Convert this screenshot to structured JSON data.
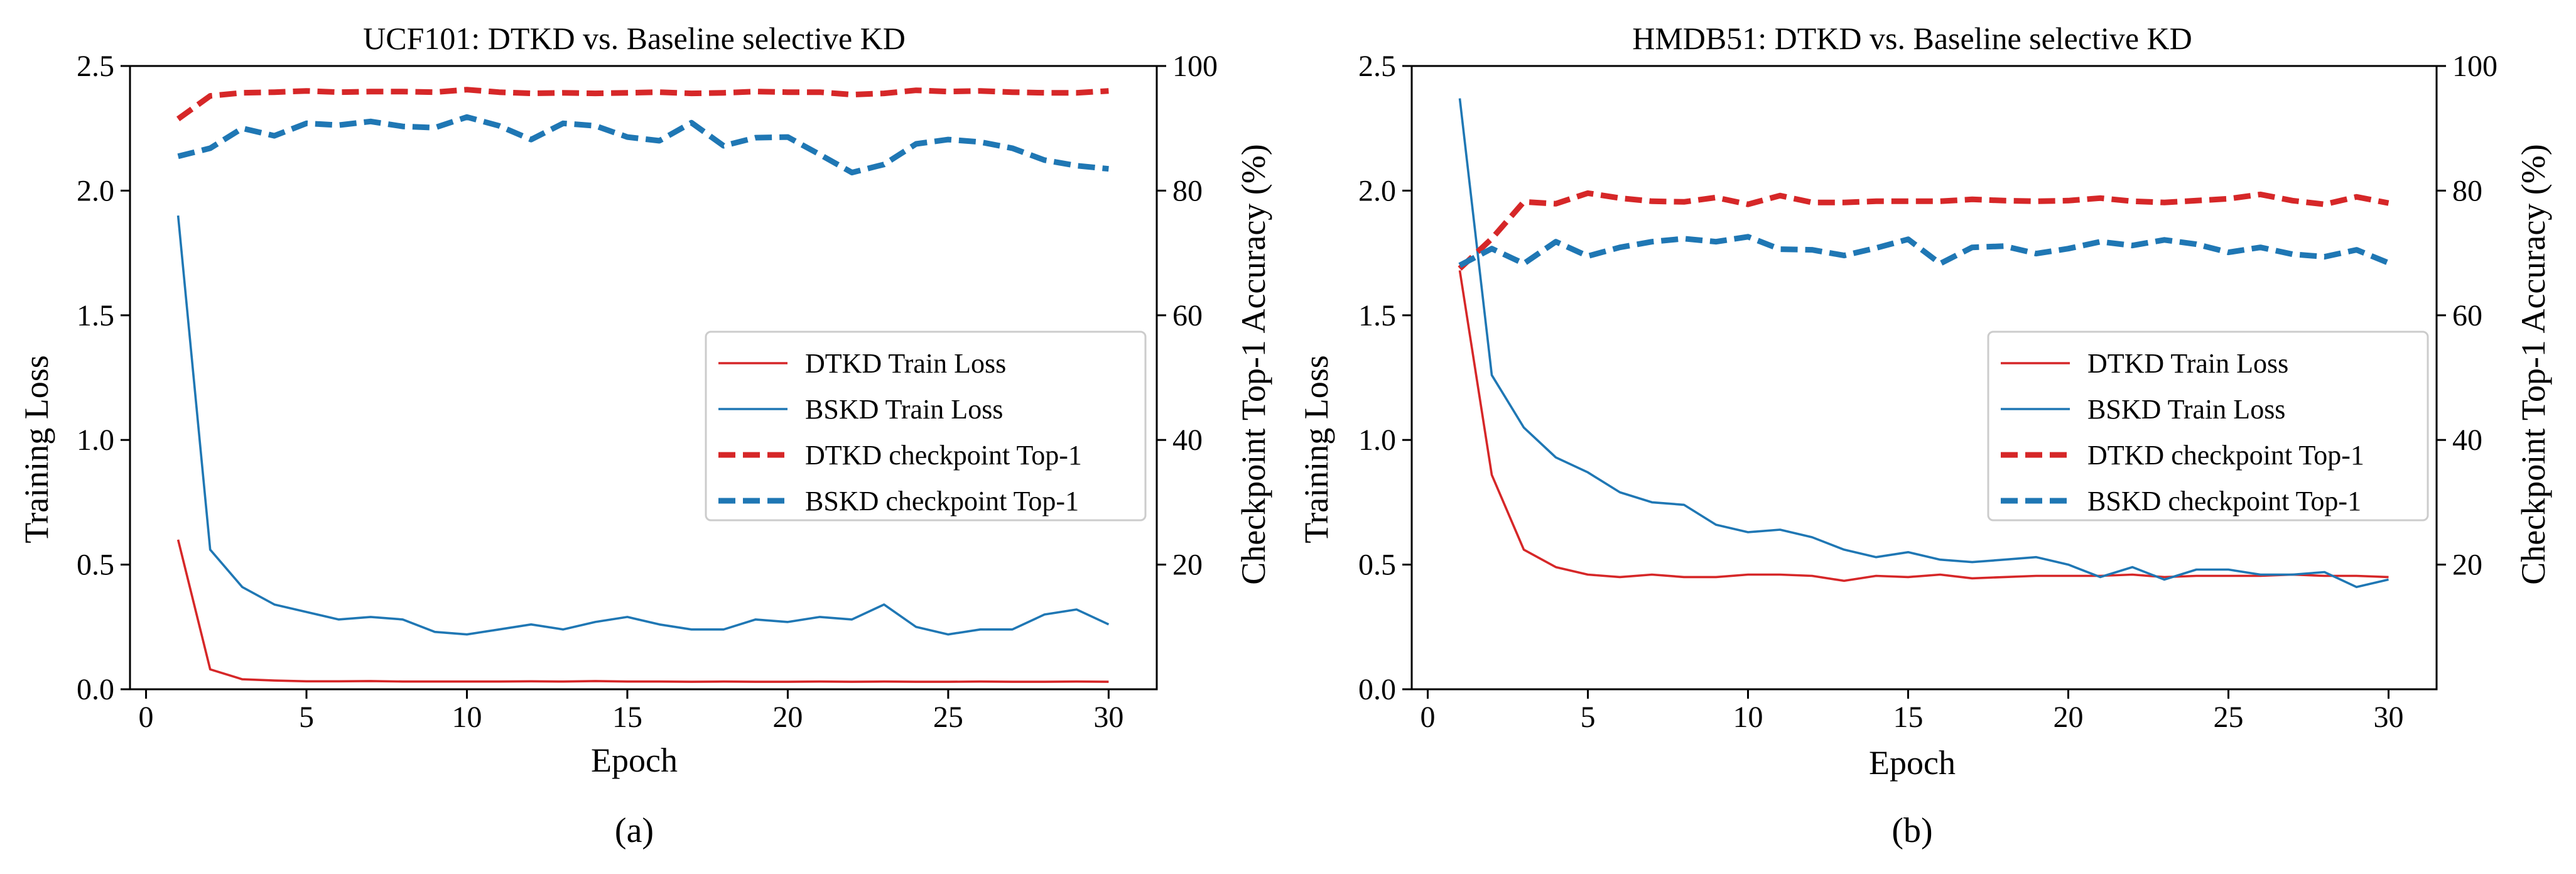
{
  "panel_labels": [
    "(a)",
    "(b)"
  ],
  "chart_data": [
    {
      "type": "line",
      "title": "UCF101: DTKD vs. Baseline selective KD",
      "xlabel": "Epoch",
      "ylabel": "Training Loss",
      "y2label": "Checkpoint Top-1 Accuracy (%)",
      "xlim": [
        -0.5,
        31.5
      ],
      "ylim": [
        0,
        2.5
      ],
      "y2lim": [
        0.0,
        100.0
      ],
      "xticks": [
        "0",
        "5",
        "10",
        "15",
        "20",
        "25",
        "30"
      ],
      "yticks": [
        "0.0",
        "0.5",
        "1.0",
        "1.5",
        "2.0",
        "2.5"
      ],
      "y2ticks": [
        "20",
        "40",
        "60",
        "80",
        "100"
      ],
      "legend_position": "center-right",
      "grid": false,
      "x": [
        1,
        2,
        3,
        4,
        5,
        6,
        7,
        8,
        9,
        10,
        11,
        12,
        13,
        14,
        15,
        16,
        17,
        18,
        19,
        20,
        21,
        22,
        23,
        24,
        25,
        26,
        27,
        28,
        29,
        30
      ],
      "series": [
        {
          "name": "DTKD Train Loss",
          "axis": "left",
          "style": "solid",
          "color": "#d62728",
          "values": [
            0.6,
            0.08,
            0.04,
            0.035,
            0.032,
            0.032,
            0.033,
            0.031,
            0.031,
            0.031,
            0.031,
            0.032,
            0.031,
            0.033,
            0.031,
            0.031,
            0.03,
            0.031,
            0.03,
            0.03,
            0.031,
            0.03,
            0.031,
            0.03,
            0.03,
            0.031,
            0.03,
            0.03,
            0.031,
            0.03
          ]
        },
        {
          "name": "BSKD Train Loss",
          "axis": "left",
          "style": "solid",
          "color": "#1f77b4",
          "values": [
            1.9,
            0.56,
            0.41,
            0.34,
            0.31,
            0.28,
            0.29,
            0.28,
            0.23,
            0.22,
            0.24,
            0.26,
            0.24,
            0.27,
            0.29,
            0.26,
            0.24,
            0.24,
            0.28,
            0.27,
            0.29,
            0.28,
            0.34,
            0.25,
            0.22,
            0.24,
            0.24,
            0.3,
            0.32,
            0.26
          ]
        },
        {
          "name": "DTKD checkpoint Top-1",
          "axis": "right",
          "style": "dashed",
          "color": "#d62728",
          "values": [
            91.5,
            95.2,
            95.7,
            95.8,
            96.0,
            95.8,
            95.9,
            95.9,
            95.8,
            96.2,
            95.8,
            95.6,
            95.7,
            95.6,
            95.7,
            95.8,
            95.6,
            95.7,
            95.9,
            95.8,
            95.8,
            95.4,
            95.6,
            96.1,
            95.9,
            96.0,
            95.8,
            95.7,
            95.7,
            96.0
          ]
        },
        {
          "name": "BSKD checkpoint Top-1",
          "axis": "right",
          "style": "dashed",
          "color": "#1f77b4",
          "values": [
            85.5,
            86.8,
            90.0,
            88.8,
            90.8,
            90.5,
            91.1,
            90.3,
            90.1,
            91.8,
            90.4,
            88.2,
            90.8,
            90.4,
            88.6,
            88.0,
            90.9,
            87.2,
            88.5,
            88.6,
            85.8,
            82.9,
            84.2,
            87.5,
            88.2,
            87.8,
            86.8,
            84.9,
            84.0,
            83.5
          ]
        }
      ]
    },
    {
      "type": "line",
      "title": "HMDB51: DTKD vs. Baseline selective KD",
      "xlabel": "Epoch",
      "ylabel": "Training Loss",
      "y2label": "Checkpoint Top-1 Accuracy (%)",
      "xlim": [
        -0.5,
        31.5
      ],
      "ylim": [
        0,
        2.5
      ],
      "y2lim": [
        0.0,
        100.0
      ],
      "xticks": [
        "0",
        "5",
        "10",
        "15",
        "20",
        "25",
        "30"
      ],
      "yticks": [
        "0.0",
        "0.5",
        "1.0",
        "1.5",
        "2.0",
        "2.5"
      ],
      "y2ticks": [
        "20",
        "40",
        "60",
        "80",
        "100"
      ],
      "legend_position": "center-right",
      "grid": false,
      "x": [
        1,
        2,
        3,
        4,
        5,
        6,
        7,
        8,
        9,
        10,
        11,
        12,
        13,
        14,
        15,
        16,
        17,
        18,
        19,
        20,
        21,
        22,
        23,
        24,
        25,
        26,
        27,
        28,
        29,
        30
      ],
      "series": [
        {
          "name": "DTKD Train Loss",
          "axis": "left",
          "style": "solid",
          "color": "#d62728",
          "values": [
            1.68,
            0.86,
            0.56,
            0.49,
            0.46,
            0.45,
            0.46,
            0.45,
            0.45,
            0.46,
            0.46,
            0.455,
            0.435,
            0.455,
            0.45,
            0.46,
            0.445,
            0.45,
            0.455,
            0.455,
            0.455,
            0.46,
            0.45,
            0.455,
            0.455,
            0.455,
            0.46,
            0.455,
            0.455,
            0.45
          ]
        },
        {
          "name": "BSKD Train Loss",
          "axis": "left",
          "style": "solid",
          "color": "#1f77b4",
          "values": [
            2.37,
            1.26,
            1.05,
            0.93,
            0.87,
            0.79,
            0.75,
            0.74,
            0.66,
            0.63,
            0.64,
            0.61,
            0.56,
            0.53,
            0.55,
            0.52,
            0.51,
            0.52,
            0.53,
            0.5,
            0.45,
            0.49,
            0.44,
            0.48,
            0.48,
            0.46,
            0.46,
            0.47,
            0.41,
            0.44
          ]
        },
        {
          "name": "DTKD checkpoint Top-1",
          "axis": "right",
          "style": "dashed",
          "color": "#d62728",
          "values": [
            67.5,
            72.3,
            78.2,
            77.9,
            79.6,
            78.8,
            78.3,
            78.2,
            78.9,
            77.8,
            79.2,
            78.1,
            78.1,
            78.3,
            78.3,
            78.3,
            78.6,
            78.4,
            78.3,
            78.4,
            78.8,
            78.3,
            78.1,
            78.4,
            78.7,
            79.4,
            78.4,
            77.8,
            79.0,
            78.0
          ]
        },
        {
          "name": "BSKD checkpoint Top-1",
          "axis": "right",
          "style": "dashed",
          "color": "#1f77b4",
          "values": [
            68.0,
            70.7,
            68.3,
            71.8,
            69.5,
            70.9,
            71.8,
            72.3,
            71.8,
            72.6,
            70.6,
            70.5,
            69.6,
            70.8,
            72.2,
            68.3,
            70.9,
            71.1,
            69.9,
            70.7,
            71.8,
            71.2,
            72.1,
            71.4,
            70.1,
            70.9,
            69.8,
            69.4,
            70.5,
            68.4
          ]
        }
      ]
    }
  ]
}
